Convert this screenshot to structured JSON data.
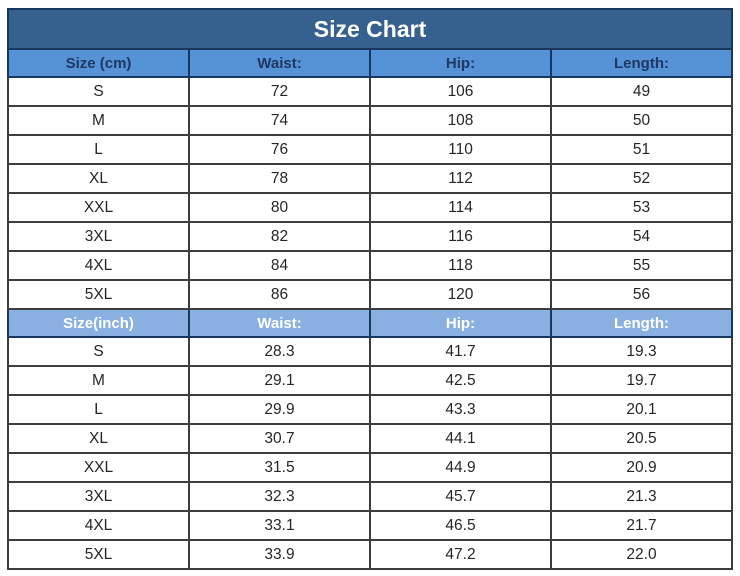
{
  "title": "Size Chart",
  "colors": {
    "title_bg": "#36618f",
    "title_text": "#ffffff",
    "header_cm_bg": "#5592d6",
    "header_cm_text": "#1f3864",
    "header_inch_bg": "#8ab0e2",
    "header_inch_text": "#ffffff",
    "grid_line": "#3d3d3d",
    "dark_border": "#17375e",
    "cell_text": "#262626"
  },
  "sections": [
    {
      "name": "cm",
      "header": [
        "Size (cm)",
        "Waist:",
        "Hip:",
        "Length:"
      ],
      "rows": [
        [
          "S",
          "72",
          "106",
          "49"
        ],
        [
          "M",
          "74",
          "108",
          "50"
        ],
        [
          "L",
          "76",
          "110",
          "51"
        ],
        [
          "XL",
          "78",
          "112",
          "52"
        ],
        [
          "XXL",
          "80",
          "114",
          "53"
        ],
        [
          "3XL",
          "82",
          "116",
          "54"
        ],
        [
          "4XL",
          "84",
          "118",
          "55"
        ],
        [
          "5XL",
          "86",
          "120",
          "56"
        ]
      ]
    },
    {
      "name": "inch",
      "header": [
        "Size(inch)",
        "Waist:",
        "Hip:",
        "Length:"
      ],
      "rows": [
        [
          "S",
          "28.3",
          "41.7",
          "19.3"
        ],
        [
          "M",
          "29.1",
          "42.5",
          "19.7"
        ],
        [
          "L",
          "29.9",
          "43.3",
          "20.1"
        ],
        [
          "XL",
          "30.7",
          "44.1",
          "20.5"
        ],
        [
          "XXL",
          "31.5",
          "44.9",
          "20.9"
        ],
        [
          "3XL",
          "32.3",
          "45.7",
          "21.3"
        ],
        [
          "4XL",
          "33.1",
          "46.5",
          "21.7"
        ],
        [
          "5XL",
          "33.9",
          "47.2",
          "22.0"
        ]
      ]
    }
  ],
  "chart_data": [
    {
      "type": "table",
      "title": "Size Chart",
      "columns": [
        "Size (cm)",
        "Waist:",
        "Hip:",
        "Length:"
      ],
      "rows": [
        [
          "S",
          72,
          106,
          49
        ],
        [
          "M",
          74,
          108,
          50
        ],
        [
          "L",
          76,
          110,
          51
        ],
        [
          "XL",
          78,
          112,
          52
        ],
        [
          "XXL",
          80,
          114,
          53
        ],
        [
          "3XL",
          82,
          116,
          54
        ],
        [
          "4XL",
          84,
          118,
          55
        ],
        [
          "5XL",
          86,
          120,
          56
        ]
      ]
    },
    {
      "type": "table",
      "title": "Size Chart",
      "columns": [
        "Size(inch)",
        "Waist:",
        "Hip:",
        "Length:"
      ],
      "rows": [
        [
          "S",
          28.3,
          41.7,
          19.3
        ],
        [
          "M",
          29.1,
          42.5,
          19.7
        ],
        [
          "L",
          29.9,
          43.3,
          20.1
        ],
        [
          "XL",
          30.7,
          44.1,
          20.5
        ],
        [
          "XXL",
          31.5,
          44.9,
          20.9
        ],
        [
          "3XL",
          32.3,
          45.7,
          21.3
        ],
        [
          "4XL",
          33.1,
          46.5,
          21.7
        ],
        [
          "5XL",
          33.9,
          47.2,
          22.0
        ]
      ]
    }
  ]
}
